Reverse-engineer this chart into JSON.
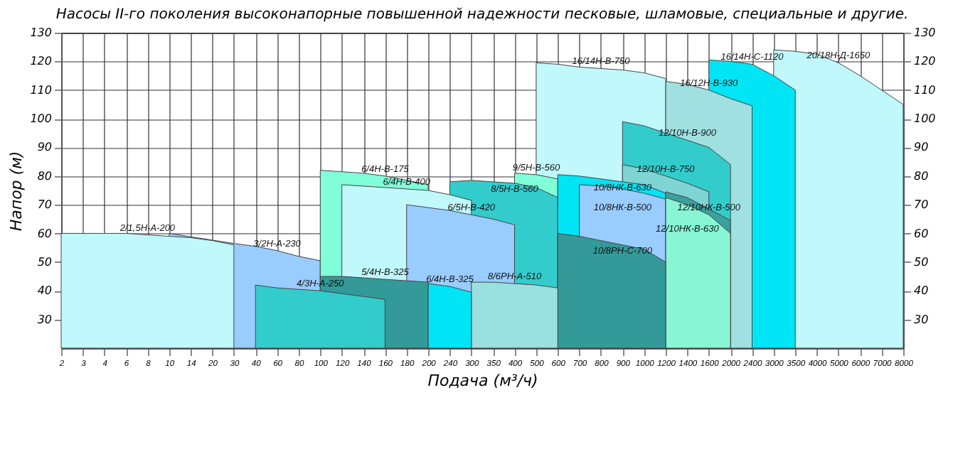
{
  "chart_data": {
    "type": "area",
    "title": "Насосы  II-го  поколения высоконапорные повышенной надежности песковые, шламовые, специальные и другие.",
    "xlabel": "Подача (м³/ч)",
    "ylabel": "Напор (м)",
    "categories": [
      "2",
      "3",
      "4",
      "6",
      "8",
      "10",
      "14",
      "20",
      "30",
      "40",
      "60",
      "80",
      "100",
      "120",
      "140",
      "160",
      "180",
      "200",
      "240",
      "300",
      "350",
      "400",
      "500",
      "600",
      "700",
      "800",
      "900",
      "1000",
      "1200",
      "1400",
      "1600",
      "2000",
      "2400",
      "3000",
      "3500",
      "4000",
      "5000",
      "6000",
      "7000",
      "8000"
    ],
    "ylim": [
      20,
      130
    ],
    "yticks": [
      30,
      40,
      50,
      60,
      70,
      80,
      90,
      100,
      110,
      120,
      130
    ],
    "y2lim": [
      20,
      130
    ],
    "y2ticks": [
      30,
      40,
      50,
      60,
      70,
      80,
      90,
      100,
      110,
      120,
      130
    ],
    "grid": true,
    "series": [
      {
        "name": "20/18Н-Д-1650",
        "color": "#c0f8fc",
        "values": [
          null,
          null,
          null,
          null,
          null,
          null,
          null,
          null,
          null,
          null,
          null,
          null,
          null,
          null,
          null,
          null,
          null,
          null,
          null,
          null,
          null,
          null,
          null,
          null,
          null,
          null,
          null,
          null,
          null,
          null,
          null,
          null,
          null,
          124,
          123.5,
          122.5,
          119.5,
          115,
          110,
          105
        ]
      },
      {
        "name": "16/14Н-В-750",
        "color": "#c0f8fc",
        "values": [
          null,
          null,
          null,
          null,
          null,
          null,
          null,
          null,
          null,
          null,
          null,
          null,
          null,
          null,
          null,
          null,
          null,
          null,
          null,
          null,
          null,
          null,
          119.5,
          119,
          118,
          117.5,
          117,
          116,
          114,
          null,
          null,
          null,
          null,
          null,
          null,
          null,
          null,
          null,
          null,
          null
        ]
      },
      {
        "name": "16/14Н-С-1120",
        "color": "#00e5f5",
        "values": [
          null,
          null,
          null,
          null,
          null,
          null,
          null,
          null,
          null,
          null,
          null,
          null,
          null,
          null,
          null,
          null,
          null,
          null,
          null,
          null,
          null,
          null,
          null,
          null,
          null,
          null,
          null,
          null,
          null,
          null,
          120.5,
          120,
          119,
          115,
          110,
          null,
          null,
          null,
          null,
          null
        ]
      },
      {
        "name": "3/2Н-А-230",
        "color": "#99ccff",
        "values": [
          null,
          null,
          null,
          null,
          null,
          60,
          null,
          null,
          56.5,
          55.5,
          54,
          52,
          50.5,
          null,
          null,
          null,
          null,
          null,
          null,
          null,
          null,
          null,
          null,
          null,
          null,
          null,
          null,
          null,
          null,
          null,
          null,
          null,
          null,
          null,
          null,
          null,
          null,
          null,
          null,
          null
        ]
      },
      {
        "name": "2/1,5Н-А-200",
        "color": "#c0f8fc",
        "values": [
          60,
          60,
          60,
          60,
          59.5,
          59,
          58.5,
          57.5,
          56,
          null,
          null,
          null,
          null,
          null,
          null,
          null,
          null,
          null,
          null,
          null,
          null,
          null,
          null,
          null,
          null,
          null,
          null,
          null,
          null,
          null,
          null,
          null,
          null,
          null,
          null,
          null,
          null,
          null,
          null,
          null
        ]
      },
      {
        "name": "6/4Н-В-175",
        "color": "#80ffd8",
        "values": [
          null,
          null,
          null,
          null,
          null,
          null,
          null,
          null,
          null,
          null,
          null,
          null,
          82,
          81.5,
          81,
          80,
          78.5,
          77,
          null,
          null,
          null,
          null,
          null,
          null,
          null,
          null,
          null,
          null,
          null,
          null,
          null,
          null,
          null,
          null,
          null,
          null,
          null,
          null,
          null,
          null
        ]
      },
      {
        "name": "9/5Н-В-560",
        "color": "#80ffd8",
        "values": [
          null,
          null,
          null,
          null,
          null,
          null,
          null,
          null,
          null,
          null,
          null,
          null,
          null,
          null,
          null,
          null,
          null,
          null,
          null,
          null,
          null,
          81,
          80.5,
          79,
          null,
          null,
          null,
          null,
          null,
          null,
          null,
          null,
          null,
          null,
          null,
          null,
          null,
          null,
          null,
          null
        ]
      },
      {
        "name": "8/5Н-В-560",
        "color": "#33cccc",
        "values": [
          null,
          null,
          null,
          null,
          null,
          null,
          null,
          null,
          null,
          null,
          null,
          null,
          null,
          null,
          null,
          null,
          null,
          null,
          78,
          78.5,
          78,
          77.5,
          76,
          72.5,
          null,
          null,
          null,
          null,
          null,
          null,
          null,
          null,
          null,
          null,
          null,
          null,
          null,
          null,
          null,
          null
        ]
      },
      {
        "name": "6/4Н-В-400",
        "color": "#c0f8fc",
        "values": [
          null,
          null,
          null,
          null,
          null,
          null,
          null,
          null,
          null,
          null,
          null,
          null,
          null,
          77,
          76.5,
          76,
          75.5,
          75,
          73.5,
          71.5,
          null,
          null,
          null,
          null,
          null,
          null,
          null,
          null,
          null,
          null,
          null,
          null,
          null,
          null,
          null,
          null,
          null,
          null,
          null,
          null
        ]
      },
      {
        "name": "6/5Н-В-420",
        "color": "#99ccff",
        "values": [
          null,
          null,
          null,
          null,
          null,
          null,
          null,
          null,
          null,
          null,
          null,
          null,
          null,
          null,
          null,
          null,
          70,
          69,
          68,
          66.5,
          65,
          63,
          null,
          null,
          null,
          null,
          null,
          null,
          null,
          null,
          null,
          null,
          null,
          null,
          null,
          null,
          null,
          null,
          null,
          null
        ]
      },
      {
        "name": "16/12Н-В-930",
        "color": "#a0e0e0",
        "values": [
          null,
          null,
          null,
          null,
          null,
          null,
          null,
          null,
          null,
          null,
          null,
          null,
          null,
          null,
          null,
          null,
          null,
          null,
          null,
          null,
          null,
          null,
          null,
          null,
          null,
          null,
          null,
          null,
          113,
          112,
          110,
          107,
          104.5,
          null,
          null,
          null,
          null,
          null,
          null,
          null
        ]
      },
      {
        "name": "12/10Н-В-900",
        "color": "#33cccc",
        "values": [
          null,
          null,
          null,
          null,
          null,
          null,
          null,
          null,
          null,
          null,
          null,
          null,
          null,
          null,
          null,
          null,
          null,
          null,
          null,
          null,
          null,
          null,
          null,
          null,
          null,
          null,
          99,
          97.5,
          95,
          92.5,
          90,
          84,
          null,
          null,
          null,
          null,
          null,
          null,
          null,
          null
        ]
      },
      {
        "name": "12/10Н-В-750",
        "color": "#7fd4d4",
        "values": [
          null,
          null,
          null,
          null,
          null,
          null,
          null,
          null,
          null,
          null,
          null,
          null,
          null,
          null,
          null,
          null,
          null,
          null,
          null,
          null,
          null,
          null,
          null,
          null,
          null,
          null,
          84,
          82.5,
          80,
          77.5,
          74.5,
          null,
          null,
          null,
          null,
          null,
          null,
          null,
          null,
          null
        ]
      },
      {
        "name": "10/8НК-В-630",
        "color": "#00e5f5",
        "values": [
          null,
          null,
          null,
          null,
          null,
          null,
          null,
          null,
          null,
          null,
          null,
          null,
          null,
          null,
          null,
          null,
          null,
          null,
          null,
          null,
          null,
          null,
          null,
          80.5,
          80,
          79,
          78,
          77,
          74,
          null,
          null,
          null,
          null,
          null,
          null,
          null,
          null,
          null,
          null,
          null
        ]
      },
      {
        "name": "10/8НК-В-500",
        "color": "#99ccff",
        "values": [
          null,
          null,
          null,
          null,
          null,
          null,
          null,
          null,
          null,
          null,
          null,
          null,
          null,
          null,
          null,
          null,
          null,
          null,
          null,
          null,
          null,
          null,
          null,
          null,
          77,
          76.5,
          75.5,
          74,
          72,
          null,
          null,
          null,
          null,
          null,
          null,
          null,
          null,
          null,
          null,
          null
        ]
      },
      {
        "name": "12/10НК-В-630",
        "color": "#3aa0a0",
        "values": [
          null,
          null,
          null,
          null,
          null,
          null,
          null,
          null,
          null,
          null,
          null,
          null,
          null,
          null,
          null,
          null,
          null,
          null,
          null,
          null,
          null,
          null,
          null,
          null,
          null,
          null,
          null,
          null,
          74.5,
          72.5,
          null,
          64.5,
          null,
          null,
          null,
          null,
          null,
          null,
          null,
          null
        ]
      },
      {
        "name": "12/10НК-В-500",
        "color": "#88f5d5",
        "values": [
          null,
          null,
          null,
          null,
          null,
          null,
          null,
          null,
          null,
          null,
          null,
          null,
          null,
          null,
          null,
          null,
          null,
          null,
          null,
          null,
          null,
          null,
          null,
          null,
          null,
          null,
          null,
          null,
          72.5,
          70,
          66.5,
          60,
          null,
          null,
          null,
          null,
          null,
          null,
          null,
          null
        ]
      },
      {
        "name": "10/8РН-С-700",
        "color": "#339999",
        "values": [
          null,
          null,
          null,
          null,
          null,
          null,
          null,
          null,
          null,
          null,
          null,
          null,
          null,
          null,
          null,
          null,
          null,
          null,
          null,
          null,
          null,
          null,
          null,
          60,
          59,
          57.5,
          56,
          54.5,
          50,
          null,
          null,
          null,
          null,
          null,
          null,
          null,
          null,
          null,
          null,
          null
        ]
      },
      {
        "name": "8/6РН-А-510",
        "color": "#99e0e0",
        "values": [
          null,
          null,
          null,
          null,
          null,
          null,
          null,
          null,
          null,
          null,
          null,
          null,
          null,
          null,
          null,
          null,
          null,
          null,
          null,
          43,
          43,
          42.5,
          42,
          41,
          null,
          null,
          null,
          null,
          null,
          null,
          null,
          null,
          null,
          null,
          null,
          null,
          null,
          null,
          null,
          null
        ]
      },
      {
        "name": "5/4Н-В-325",
        "color": "#339999",
        "values": [
          null,
          null,
          null,
          null,
          null,
          null,
          null,
          null,
          null,
          null,
          null,
          null,
          45,
          45,
          44.5,
          44,
          43.5,
          43,
          null,
          null,
          null,
          null,
          null,
          null,
          null,
          null,
          null,
          null,
          null,
          null,
          null,
          null,
          null,
          null,
          null,
          null,
          null,
          null,
          null,
          null
        ]
      },
      {
        "name": "6/4Н-В-325",
        "color": "#00e5f5",
        "values": [
          null,
          null,
          null,
          null,
          null,
          null,
          null,
          null,
          null,
          null,
          null,
          null,
          null,
          null,
          null,
          null,
          null,
          42.5,
          41.5,
          39.5,
          null,
          null,
          null,
          null,
          null,
          null,
          null,
          null,
          null,
          null,
          null,
          null,
          null,
          null,
          null,
          null,
          null,
          null,
          null,
          null
        ]
      },
      {
        "name": "4/3Н-А-250",
        "color": "#33cccc",
        "values": [
          null,
          null,
          null,
          null,
          null,
          null,
          null,
          null,
          null,
          42,
          41,
          40.5,
          40,
          39,
          38,
          37,
          null,
          null,
          null,
          null,
          null,
          null,
          null,
          null,
          null,
          null,
          null,
          null,
          null,
          null,
          null,
          null,
          null,
          null,
          null,
          null,
          null,
          null,
          null,
          null
        ]
      }
    ]
  }
}
